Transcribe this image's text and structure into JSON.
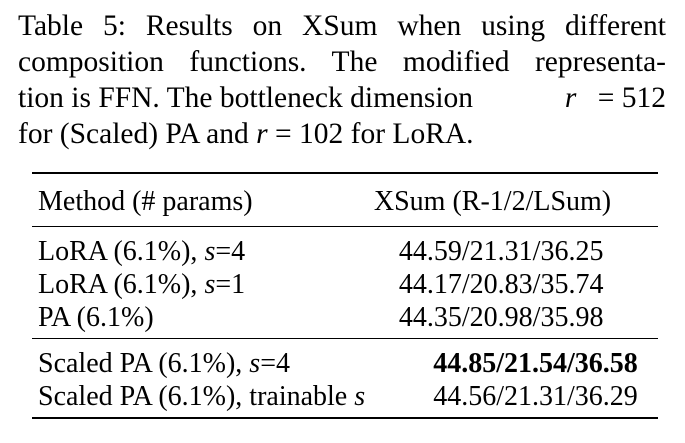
{
  "caption": {
    "line1": "Table 5: Results on XSum when using different",
    "line2": "composition functions. The modified representa-",
    "line3a": "tion is FFN. The bottleneck dimension ",
    "line3var": "r",
    "line3b": " = 512",
    "line4a": "for (Scaled) PA and ",
    "line4var": "r",
    "line4b": " = 102 for LoRA."
  },
  "table": {
    "header": {
      "method": "Method (# params)",
      "score": "XSum (R-1/2/LSum)"
    },
    "group1": [
      {
        "method": "LoRA (6.1%), ",
        "var": "s",
        "suffix": "=4",
        "score": "44.59/21.31/36.25"
      },
      {
        "method": "LoRA (6.1%), ",
        "var": "s",
        "suffix": "=1",
        "score": "44.17/20.83/35.74"
      },
      {
        "method": "PA (6.1%)",
        "var": "",
        "suffix": "",
        "score": "44.35/20.98/35.98"
      }
    ],
    "group2": [
      {
        "method": "Scaled PA (6.1%), ",
        "var": "s",
        "suffix": "=4",
        "score": "44.85/21.54/36.58",
        "best": true
      },
      {
        "method": "Scaled PA (6.1%), trainable ",
        "var": "s",
        "suffix": "",
        "score": "44.56/21.31/36.29"
      }
    ]
  }
}
